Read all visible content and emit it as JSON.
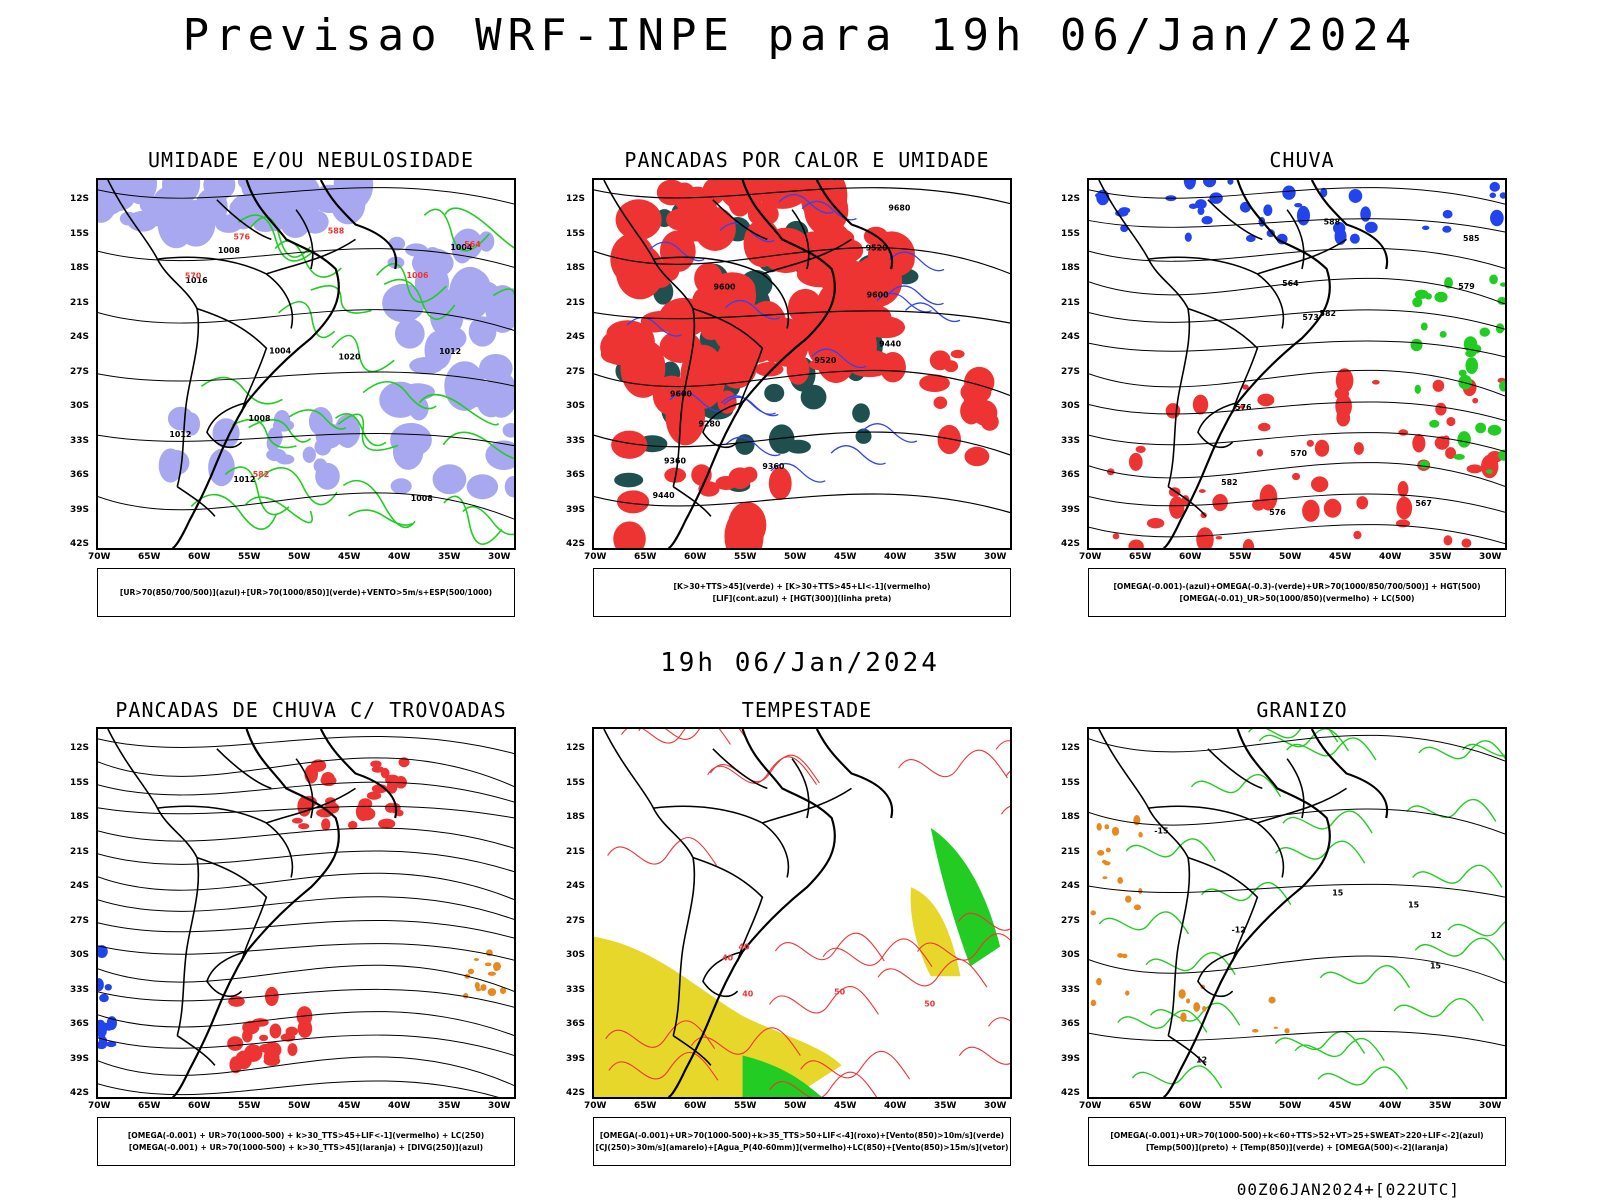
{
  "title": "Previsao WRF-INPE  para 19h 06/Jan/2024",
  "middle_title": "19h 06/Jan/2024",
  "footer": "00Z06JAN2024+[022UTC]",
  "axes": {
    "lat_labels": [
      "12S",
      "15S",
      "18S",
      "21S",
      "24S",
      "27S",
      "30S",
      "33S",
      "36S",
      "39S",
      "42S"
    ],
    "lon_labels": [
      "70W",
      "65W",
      "60W",
      "55W",
      "50W",
      "45W",
      "40W",
      "35W",
      "30W"
    ]
  },
  "colors": {
    "blue_fill": "#9999ee",
    "green": "#22cc22",
    "red": "#ee3333",
    "dark_teal": "#1f4f4f",
    "yellow": "#e6d72a",
    "orange": "#e68a1f"
  },
  "panels": [
    {
      "title": "UMIDADE E/OU NEBULOSIDADE",
      "legend": [
        "[UR>70(850/700/500)](azul)+[UR>70(1000/850)](verde)+VENTO>5m/s+ESP(500/1000)"
      ],
      "contour_labels": [
        "1008",
        "1012",
        "1004",
        "1008",
        "1012",
        "1016",
        "1020",
        "1012",
        "1008",
        "1004",
        "1006",
        "576",
        "570",
        "564",
        "582",
        "588"
      ]
    },
    {
      "title": "PANCADAS POR CALOR E UMIDADE",
      "legend": [
        "[K>30+TTS>45](verde) + [K>30+TTS>45+LI<-1](vermelho)",
        "[LIF](cont.azul) + [HGT(300)](linha preta)"
      ],
      "contour_labels": [
        "9680",
        "9600",
        "9600",
        "9520",
        "9520",
        "9440",
        "9440",
        "9360",
        "9360",
        "9280",
        "9600"
      ]
    },
    {
      "title": "CHUVA",
      "legend": [
        "[OMEGA(-0.001)-(azul)+OMEGA(-0.3)-(verde)+UR>70(1000/850/700/500)] + HGT(500)",
        "[OMEGA(-0.01)_UR>50(1000/850)(vermelho) + LC(500)"
      ],
      "contour_labels": [
        "582",
        "588",
        "585",
        "582",
        "579",
        "576",
        "573",
        "570",
        "567",
        "564",
        "576"
      ]
    },
    {
      "title": "PANCADAS DE CHUVA C/ TROVOADAS",
      "legend": [
        "[OMEGA(-0.001) + UR>70(1000-500) + k>30_TTS>45+LIF<-1](vermelho) + LC(250)",
        "[OMEGA(-0.001) + UR>70(1000-500) + k>30_TTS>45](laranja) + [DIVG(250)](azul)"
      ],
      "contour_labels": []
    },
    {
      "title": "TEMPESTADE",
      "legend": [
        "[OMEGA(-0.001)+UR>70(1000-500)+k>35_TTS>50+LIF<-4](roxo)+[Vento(850)>10m/s](verde)",
        "[CJ(250)>30m/s](amarelo)+[Agua_P(40-60mm)](vermelho)+LC(850)+[Vento(850)>15m/s](vetor)"
      ],
      "contour_labels": [
        "40",
        "40",
        "50",
        "40",
        "50"
      ]
    },
    {
      "title": "GRANIZO",
      "legend": [
        "[OMEGA(-0.001)+UR>70(1000-500)+k<60+TTS>52+VT>25+SWEAT>220+LIF<-2](azul)",
        "[Temp(500)](preto) + [Temp(850)](verde) + [OMEGA(500)<-2](laranja)"
      ],
      "contour_labels": [
        "15",
        "15",
        "12",
        "12",
        "-12",
        "-15",
        "15"
      ]
    }
  ]
}
